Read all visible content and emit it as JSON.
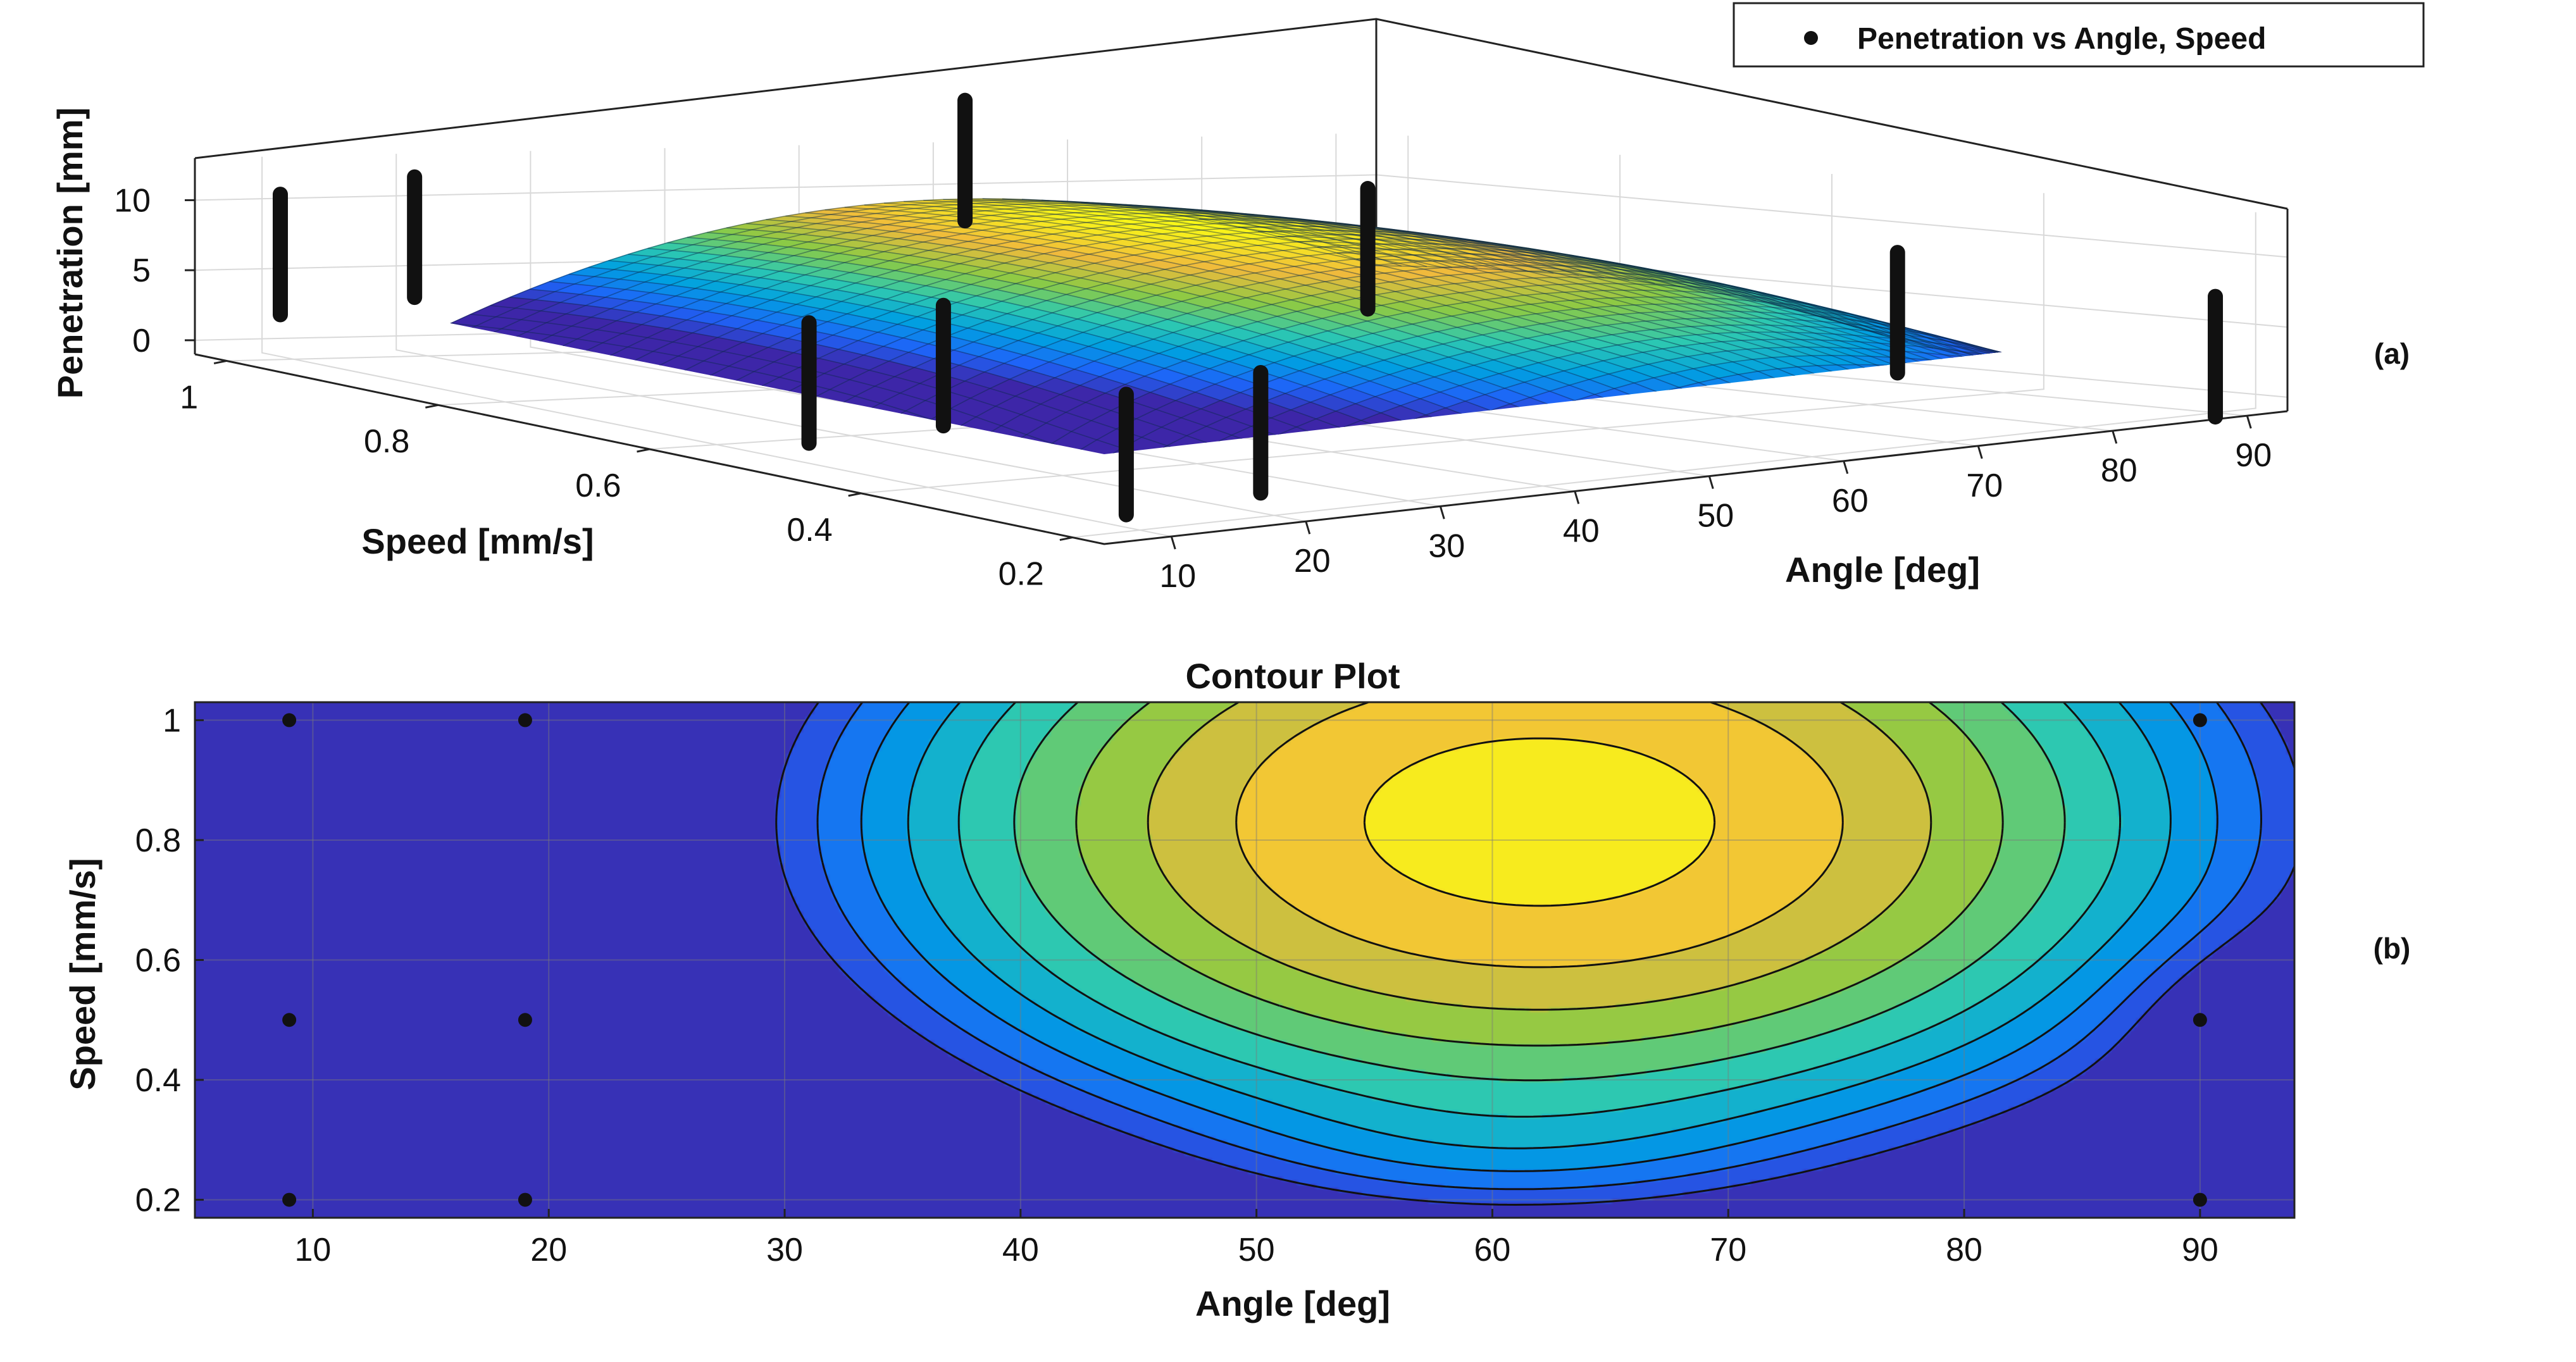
{
  "chart_data": [
    {
      "type": "surface",
      "panel_label": "(a)",
      "xlabel": "Angle [deg]",
      "ylabel": "Speed [mm/s]",
      "zlabel": "Penetration [mm]",
      "x_ticks": [
        "10",
        "20",
        "30",
        "40",
        "50",
        "60",
        "70",
        "80",
        "90"
      ],
      "y_ticks": [
        "1",
        "0.8",
        "0.6",
        "0.4",
        "0.2"
      ],
      "z_ticks": [
        "10",
        "5",
        "0"
      ],
      "xlim": [
        5,
        93
      ],
      "ylim": [
        0.17,
        1.03
      ],
      "zlim": [
        -1,
        13
      ],
      "grid": true,
      "legend": {
        "position": "top-right",
        "entries": [
          "Penetration vs Angle, Speed"
        ]
      },
      "colormap": [
        "#3d26a8",
        "#1e64f8",
        "#00a0e1",
        "#2ec9b0",
        "#8dca44",
        "#f0ba3c",
        "#f9fb15"
      ],
      "series": [
        {
          "name": "Penetration vs Angle, Speed",
          "points": [
            {
              "angle": 9,
              "speed": 1.0,
              "penetration": 6.5
            },
            {
              "angle": 19,
              "speed": 1.0,
              "penetration": 7.5
            },
            {
              "angle": 9,
              "speed": 0.5,
              "penetration": 5.0
            },
            {
              "angle": 19,
              "speed": 0.5,
              "penetration": 5.5
            },
            {
              "angle": 9,
              "speed": 0.2,
              "penetration": 4.5
            },
            {
              "angle": 19,
              "speed": 0.2,
              "penetration": 5.0
            },
            {
              "angle": 60,
              "speed": 1.0,
              "penetration": 12.0
            },
            {
              "angle": 90,
              "speed": 1.0,
              "penetration": 5.0
            },
            {
              "angle": 90,
              "speed": 0.5,
              "penetration": 4.0
            },
            {
              "angle": 90,
              "speed": 0.2,
              "penetration": 3.0
            }
          ]
        }
      ]
    },
    {
      "type": "contour",
      "panel_label": "(b)",
      "title": "Contour Plot",
      "xlabel": "Angle [deg]",
      "ylabel": "Speed [mm/s]",
      "x_ticks": [
        "10",
        "20",
        "30",
        "40",
        "50",
        "60",
        "70",
        "80",
        "90"
      ],
      "y_ticks": [
        "1",
        "0.8",
        "0.6",
        "0.4",
        "0.2"
      ],
      "xlim": [
        5,
        94
      ],
      "ylim": [
        0.17,
        1.03
      ],
      "grid": true,
      "contour_levels": [
        3,
        4,
        5,
        6,
        7,
        8,
        9,
        10,
        11,
        12
      ],
      "peak": {
        "angle": 62,
        "speed": 0.83,
        "penetration": 12.5
      },
      "design_points": [
        {
          "angle": 9,
          "speed": 1.0
        },
        {
          "angle": 19,
          "speed": 1.0
        },
        {
          "angle": 90,
          "speed": 1.0
        },
        {
          "angle": 9,
          "speed": 0.5
        },
        {
          "angle": 19,
          "speed": 0.5
        },
        {
          "angle": 90,
          "speed": 0.5
        },
        {
          "angle": 9,
          "speed": 0.2
        },
        {
          "angle": 19,
          "speed": 0.2
        },
        {
          "angle": 90,
          "speed": 0.2
        }
      ]
    }
  ]
}
